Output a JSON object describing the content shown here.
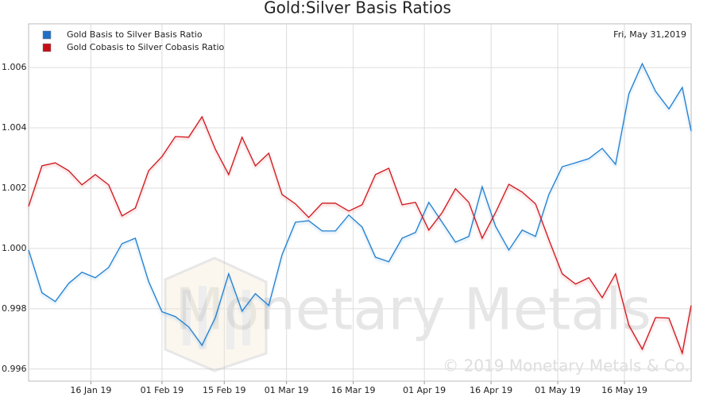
{
  "chart_data": {
    "type": "line",
    "title": "Gold:Silver Basis Ratios",
    "date_label": "Fri, May 31,2019",
    "watermark": "Monetary Metals",
    "copyright": "© 2019 Monetary Metals & Co.",
    "x": [
      "2019-01-02",
      "2019-01-05",
      "2019-01-08",
      "2019-01-11",
      "2019-01-14",
      "2019-01-17",
      "2019-01-20",
      "2019-01-23",
      "2019-01-26",
      "2019-01-29",
      "2019-02-01",
      "2019-02-04",
      "2019-02-07",
      "2019-02-10",
      "2019-02-13",
      "2019-02-16",
      "2019-02-19",
      "2019-02-22",
      "2019-02-25",
      "2019-02-28",
      "2019-03-03",
      "2019-03-06",
      "2019-03-09",
      "2019-03-12",
      "2019-03-15",
      "2019-03-18",
      "2019-03-21",
      "2019-03-24",
      "2019-03-27",
      "2019-03-30",
      "2019-04-02",
      "2019-04-05",
      "2019-04-08",
      "2019-04-11",
      "2019-04-14",
      "2019-04-17",
      "2019-04-20",
      "2019-04-23",
      "2019-04-26",
      "2019-04-29",
      "2019-05-02",
      "2019-05-05",
      "2019-05-08",
      "2019-05-11",
      "2019-05-14",
      "2019-05-17",
      "2019-05-20",
      "2019-05-23",
      "2019-05-26",
      "2019-05-29",
      "2019-05-31"
    ],
    "series": [
      {
        "name": "Gold Basis to Silver Basis Ratio",
        "color": "#1f7fd0",
        "legend_color": "#1f6fc4",
        "values": [
          0.99995,
          0.99853,
          0.99824,
          0.99884,
          0.99921,
          0.99903,
          0.99937,
          1.00016,
          1.00034,
          0.9989,
          0.9979,
          0.99774,
          0.9974,
          0.99679,
          0.99771,
          0.99916,
          0.99792,
          0.9985,
          0.99811,
          0.99979,
          1.00087,
          1.00092,
          1.00058,
          1.00058,
          1.00111,
          1.00071,
          0.99971,
          0.99956,
          1.00034,
          1.00053,
          1.00153,
          1.00087,
          1.00021,
          1.0004,
          1.00205,
          1.00074,
          0.99995,
          1.00061,
          1.0004,
          1.00179,
          1.00271,
          1.00284,
          1.00298,
          1.00332,
          1.00279,
          1.00513,
          1.00613,
          1.00521,
          1.00463,
          1.00534,
          1.0039
        ]
      },
      {
        "name": "Gold Cobasis to Silver Cobasis Ratio",
        "color": "#d0161b",
        "legend_color": "#c40f17",
        "values": [
          1.0014,
          1.00274,
          1.00284,
          1.00258,
          1.00211,
          1.00245,
          1.00211,
          1.00108,
          1.00134,
          1.00258,
          1.00305,
          1.00371,
          1.00369,
          1.00437,
          1.00329,
          1.00245,
          1.00369,
          1.00274,
          1.00316,
          1.00179,
          1.00148,
          1.00103,
          1.0015,
          1.0015,
          1.00124,
          1.00145,
          1.00245,
          1.00266,
          1.00145,
          1.00153,
          1.00061,
          1.00119,
          1.00198,
          1.00153,
          1.00034,
          1.00119,
          1.00213,
          1.00187,
          1.00148,
          1.00029,
          0.99916,
          0.99882,
          0.99903,
          0.99837,
          0.99916,
          0.99745,
          0.99666,
          0.99771,
          0.99769,
          0.99653,
          0.99811
        ]
      }
    ],
    "xlim": [
      "2019-01-02",
      "2019-05-31"
    ],
    "xticks": [
      {
        "value": "2019-01-16",
        "label": "16 Jan 19"
      },
      {
        "value": "2019-02-01",
        "label": "01 Feb 19"
      },
      {
        "value": "2019-02-15",
        "label": "15 Feb 19"
      },
      {
        "value": "2019-03-01",
        "label": "01 Mar 19"
      },
      {
        "value": "2019-03-16",
        "label": "16 Mar 19"
      },
      {
        "value": "2019-04-01",
        "label": "01 Apr 19"
      },
      {
        "value": "2019-04-16",
        "label": "16 Apr 19"
      },
      {
        "value": "2019-05-01",
        "label": "01 May 19"
      },
      {
        "value": "2019-05-16",
        "label": "16 May 19"
      }
    ],
    "ylim": [
      0.9956,
      1.00745
    ],
    "yticks": [
      0.996,
      0.998,
      {
        "value": 1,
        "label": "1.000"
      },
      1.002,
      1.004,
      1.006
    ],
    "grid": true,
    "legend": "upper left"
  }
}
